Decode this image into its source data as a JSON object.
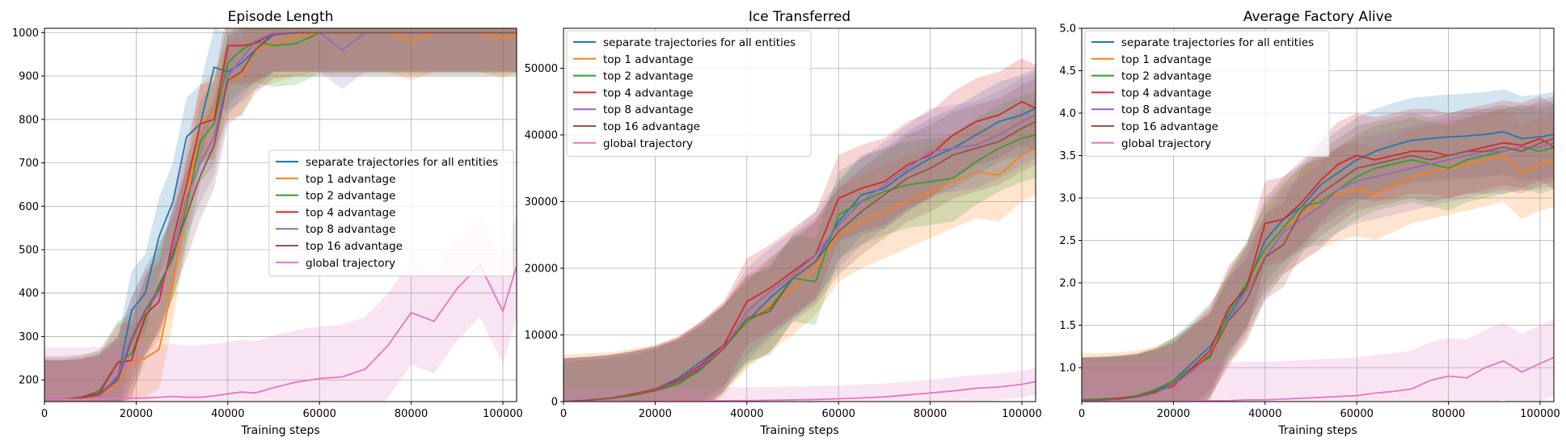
{
  "colors": {
    "separate": "#1f77b4",
    "top1": "#ff7f0e",
    "top2": "#2ca02c",
    "top4": "#d62728",
    "top8": "#9467bd",
    "top16": "#8c564b",
    "global": "#e377c2"
  },
  "chart_data": [
    {
      "type": "line",
      "title": "Episode Length",
      "xlabel": "Training steps",
      "ylabel": "",
      "xlim": [
        0,
        103000
      ],
      "ylim": [
        150,
        1010
      ],
      "xticks": [
        0,
        20000,
        40000,
        60000,
        80000,
        100000
      ],
      "yticks": [
        200,
        300,
        400,
        500,
        600,
        700,
        800,
        900,
        1000
      ],
      "grid": true,
      "legend_position": "center-right",
      "x": [
        0,
        4000,
        8000,
        12000,
        16000,
        19000,
        22000,
        25000,
        28000,
        31000,
        34000,
        37000,
        40000,
        43000,
        46000,
        50000,
        55000,
        60000,
        65000,
        70000,
        75000,
        80000,
        85000,
        90000,
        95000,
        100000,
        103000
      ],
      "series": [
        {
          "name": "separate trajectories for all entities",
          "color": "#1f77b4",
          "values": [
            155,
            155,
            158,
            170,
            205,
            360,
            400,
            530,
            610,
            760,
            790,
            920,
            910,
            930,
            960,
            1000,
            1000,
            1000,
            1000,
            1000,
            1000,
            1000,
            1000,
            1000,
            1000,
            1000,
            1000
          ],
          "band": 90
        },
        {
          "name": "top 1 advantage",
          "color": "#ff7f0e",
          "values": [
            155,
            155,
            156,
            165,
            190,
            240,
            250,
            270,
            420,
            620,
            790,
            820,
            890,
            900,
            960,
            975,
            990,
            1000,
            1000,
            1000,
            1000,
            980,
            1000,
            1000,
            1000,
            985,
            1000
          ],
          "band": 90
        },
        {
          "name": "top 2 advantage",
          "color": "#2ca02c",
          "values": [
            155,
            155,
            160,
            175,
            240,
            260,
            340,
            420,
            480,
            600,
            750,
            790,
            930,
            960,
            980,
            970,
            975,
            1000,
            1000,
            1000,
            1000,
            1000,
            1000,
            1000,
            1000,
            1000,
            1000
          ],
          "band": 95
        },
        {
          "name": "top 4 advantage",
          "color": "#d62728",
          "values": [
            155,
            155,
            160,
            170,
            240,
            245,
            350,
            380,
            520,
            650,
            790,
            800,
            970,
            970,
            975,
            1000,
            1000,
            1000,
            1000,
            1000,
            1000,
            1000,
            1000,
            1000,
            1000,
            1000,
            1000
          ],
          "band": 90
        },
        {
          "name": "top 8 advantage",
          "color": "#9467bd",
          "values": [
            155,
            155,
            158,
            165,
            210,
            300,
            360,
            400,
            500,
            620,
            700,
            760,
            900,
            940,
            980,
            1000,
            1000,
            1000,
            960,
            1000,
            1000,
            1000,
            1000,
            1000,
            1000,
            1000,
            1000
          ],
          "band": 90
        },
        {
          "name": "top 16 advantage",
          "color": "#8c564b",
          "values": [
            155,
            155,
            158,
            165,
            200,
            290,
            360,
            410,
            490,
            580,
            670,
            740,
            890,
            910,
            960,
            995,
            1000,
            1000,
            1000,
            1000,
            1000,
            1000,
            1000,
            1000,
            1000,
            1000,
            1000
          ],
          "band": 100
        },
        {
          "name": "global trajectory",
          "color": "#e377c2",
          "values": [
            155,
            155,
            155,
            156,
            157,
            158,
            158,
            160,
            162,
            160,
            160,
            163,
            168,
            172,
            170,
            182,
            195,
            203,
            207,
            225,
            280,
            355,
            335,
            410,
            465,
            358,
            462
          ],
          "band": 120
        }
      ]
    },
    {
      "type": "line",
      "title": "Ice Transferred",
      "xlabel": "Training steps",
      "ylabel": "",
      "xlim": [
        0,
        103000
      ],
      "ylim": [
        0,
        56000
      ],
      "xticks": [
        0,
        20000,
        40000,
        60000,
        80000,
        100000
      ],
      "yticks": [
        0,
        10000,
        20000,
        30000,
        40000,
        50000
      ],
      "grid": true,
      "legend_position": "upper-left",
      "x": [
        0,
        5000,
        10000,
        15000,
        20000,
        25000,
        30000,
        35000,
        40000,
        45000,
        50000,
        55000,
        60000,
        65000,
        70000,
        75000,
        80000,
        85000,
        90000,
        95000,
        100000,
        103000
      ],
      "series": [
        {
          "name": "separate trajectories for all entities",
          "color": "#1f77b4",
          "values": [
            0,
            200,
            500,
            1000,
            1800,
            3500,
            6000,
            8500,
            12000,
            15500,
            18500,
            21000,
            27000,
            31000,
            32000,
            34500,
            36500,
            38000,
            40000,
            42000,
            43000,
            44000
          ],
          "band": 6000
        },
        {
          "name": "top 1 advantage",
          "color": "#ff7f0e",
          "values": [
            0,
            200,
            400,
            900,
            1500,
            2800,
            5000,
            8000,
            12000,
            14500,
            17000,
            20000,
            25000,
            27000,
            28500,
            30000,
            31500,
            33000,
            34500,
            34000,
            37000,
            38000
          ],
          "band": 7000
        },
        {
          "name": "top 2 advantage",
          "color": "#2ca02c",
          "values": [
            0,
            200,
            450,
            900,
            1600,
            2600,
            4800,
            8000,
            12000,
            14000,
            18500,
            18000,
            28000,
            30000,
            31500,
            32500,
            33000,
            33500,
            36000,
            38000,
            39500,
            40000
          ],
          "band": 6500
        },
        {
          "name": "top 4 advantage",
          "color": "#d62728",
          "values": [
            0,
            200,
            500,
            1100,
            1900,
            3200,
            5500,
            8500,
            15000,
            17000,
            19500,
            22000,
            30500,
            32000,
            33000,
            35500,
            37000,
            40000,
            42000,
            43000,
            45000,
            44000
          ],
          "band": 6500
        },
        {
          "name": "top 8 advantage",
          "color": "#9467bd",
          "values": [
            0,
            200,
            500,
            1000,
            1800,
            3000,
            5200,
            8000,
            13500,
            16500,
            19000,
            22000,
            26500,
            30000,
            32500,
            35000,
            37500,
            38000,
            38500,
            40000,
            42000,
            43000
          ],
          "band": 6500
        },
        {
          "name": "top 16 advantage",
          "color": "#8c564b",
          "values": [
            0,
            200,
            500,
            1000,
            1700,
            2900,
            5000,
            8000,
            12500,
            13500,
            18500,
            21000,
            25500,
            28500,
            31000,
            33500,
            35000,
            37000,
            38000,
            39000,
            41000,
            42000
          ],
          "band": 6500
        },
        {
          "name": "global trajectory",
          "color": "#e377c2",
          "values": [
            0,
            0,
            20,
            40,
            60,
            80,
            100,
            120,
            150,
            200,
            250,
            320,
            420,
            550,
            700,
            1000,
            1300,
            1600,
            2000,
            2200,
            2600,
            3000
          ],
          "band": 2000
        }
      ]
    },
    {
      "type": "line",
      "title": "Average Factory Alive",
      "xlabel": "Training steps",
      "ylabel": "",
      "xlim": [
        0,
        103000
      ],
      "ylim": [
        0.6,
        5.0
      ],
      "xticks": [
        0,
        20000,
        40000,
        60000,
        80000,
        100000
      ],
      "yticks": [
        1.0,
        1.5,
        2.0,
        2.5,
        3.0,
        3.5,
        4.0,
        4.5,
        5.0
      ],
      "grid": true,
      "legend_position": "upper-left",
      "x": [
        0,
        4000,
        8000,
        12000,
        16000,
        20000,
        24000,
        28000,
        32000,
        36000,
        40000,
        44000,
        48000,
        52000,
        56000,
        60000,
        64000,
        68000,
        72000,
        76000,
        80000,
        84000,
        88000,
        92000,
        96000,
        100000,
        103000
      ],
      "series": [
        {
          "name": "separate trajectories for all entities",
          "color": "#1f77b4",
          "values": [
            0.62,
            0.63,
            0.64,
            0.66,
            0.72,
            0.85,
            1.05,
            1.25,
            1.6,
            1.95,
            2.5,
            2.75,
            2.9,
            3.15,
            3.3,
            3.45,
            3.55,
            3.62,
            3.68,
            3.7,
            3.72,
            3.73,
            3.75,
            3.78,
            3.7,
            3.72,
            3.75
          ],
          "band": 0.5
        },
        {
          "name": "top 1 advantage",
          "color": "#ff7f0e",
          "values": [
            0.62,
            0.62,
            0.63,
            0.65,
            0.7,
            0.8,
            0.95,
            1.2,
            1.55,
            1.9,
            2.4,
            2.65,
            2.8,
            2.95,
            3.05,
            3.1,
            3.05,
            3.15,
            3.25,
            3.3,
            3.35,
            3.4,
            3.45,
            3.5,
            3.3,
            3.4,
            3.45
          ],
          "band": 0.55
        },
        {
          "name": "top 2 advantage",
          "color": "#2ca02c",
          "values": [
            0.62,
            0.63,
            0.64,
            0.67,
            0.74,
            0.85,
            1.0,
            1.12,
            1.65,
            2.0,
            2.4,
            2.65,
            2.9,
            2.95,
            3.1,
            3.25,
            3.35,
            3.4,
            3.45,
            3.4,
            3.35,
            3.45,
            3.5,
            3.55,
            3.6,
            3.55,
            3.6
          ],
          "band": 0.5
        },
        {
          "name": "top 4 advantage",
          "color": "#d62728",
          "values": [
            0.62,
            0.62,
            0.64,
            0.66,
            0.72,
            0.78,
            1.0,
            1.2,
            1.7,
            1.95,
            2.7,
            2.75,
            2.95,
            3.2,
            3.4,
            3.5,
            3.45,
            3.5,
            3.55,
            3.55,
            3.5,
            3.55,
            3.6,
            3.65,
            3.62,
            3.7,
            3.6
          ],
          "band": 0.5
        },
        {
          "name": "top 8 advantage",
          "color": "#9467bd",
          "values": [
            0.62,
            0.62,
            0.63,
            0.65,
            0.7,
            0.8,
            0.95,
            1.15,
            1.55,
            1.9,
            2.3,
            2.6,
            2.75,
            2.9,
            3.1,
            3.2,
            3.25,
            3.3,
            3.35,
            3.4,
            3.45,
            3.5,
            3.55,
            3.55,
            3.6,
            3.6,
            3.65
          ],
          "band": 0.5
        },
        {
          "name": "top 16 advantage",
          "color": "#8c564b",
          "values": [
            0.62,
            0.62,
            0.63,
            0.66,
            0.71,
            0.82,
            0.98,
            1.15,
            1.55,
            1.8,
            2.3,
            2.45,
            2.85,
            3.05,
            3.2,
            3.35,
            3.4,
            3.45,
            3.5,
            3.45,
            3.5,
            3.55,
            3.55,
            3.6,
            3.55,
            3.65,
            3.7
          ],
          "band": 0.5
        },
        {
          "name": "global trajectory",
          "color": "#e377c2",
          "values": [
            0.6,
            0.6,
            0.6,
            0.6,
            0.6,
            0.6,
            0.61,
            0.61,
            0.61,
            0.62,
            0.62,
            0.63,
            0.64,
            0.65,
            0.66,
            0.67,
            0.7,
            0.72,
            0.75,
            0.85,
            0.9,
            0.88,
            1.0,
            1.08,
            0.95,
            1.05,
            1.12
          ],
          "band": 0.45
        }
      ]
    }
  ]
}
